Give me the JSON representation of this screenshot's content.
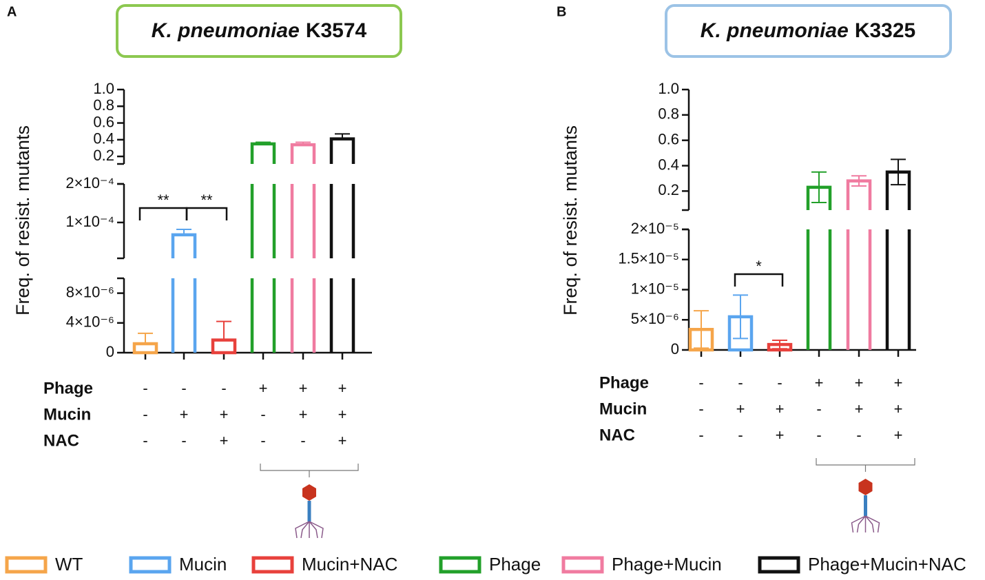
{
  "chart_data": [
    {
      "type": "bar",
      "panel": "A",
      "title": {
        "species": "K. pneumoniae",
        "strain": "K3574"
      },
      "y_label": "Freq. of resist. mutants",
      "categories": [
        null,
        null,
        null,
        null,
        null,
        null
      ],
      "values": [
        1.2e-06,
        6.8e-05,
        1.7e-06,
        0.35,
        0.34,
        0.41
      ],
      "errors": [
        1.4e-06,
        1.4e-05,
        2.5e-06,
        0.02,
        0.03,
        0.06
      ],
      "error_bars": "upper",
      "segments": [
        {
          "ylim": [
            0,
            1e-05
          ],
          "yticks": [
            0,
            {
              "value": 4e-06,
              "label": "4×10⁻⁶"
            },
            {
              "value": 8e-06,
              "label": "8×10⁻⁶"
            }
          ]
        },
        {
          "ylim": [
            7e-06,
            0.0002
          ],
          "yticks": [
            {
              "value": 0.0001,
              "label": "1×10⁻⁴"
            },
            {
              "value": 0.0002,
              "label": "2×10⁻⁴"
            }
          ]
        },
        {
          "ylim": [
            0.11,
            1.0
          ],
          "yticks": [
            0.2,
            0.4,
            0.6,
            0.8,
            {
              "value": 1.0,
              "label": "1.0"
            }
          ]
        }
      ],
      "conditions": [
        {
          "name": "Phage",
          "signs": [
            "-",
            "-",
            "-",
            "+",
            "+",
            "+"
          ]
        },
        {
          "name": "Mucin",
          "signs": [
            "-",
            "+",
            "+",
            "-",
            "+",
            "+"
          ]
        },
        {
          "name": "NAC",
          "signs": [
            "-",
            "-",
            "+",
            "-",
            "-",
            "+"
          ]
        }
      ],
      "significance": [
        {
          "from": 0,
          "to": 1,
          "label": "**"
        },
        {
          "from": 1,
          "to": 2,
          "label": "**"
        }
      ]
    },
    {
      "type": "bar",
      "panel": "B",
      "title": {
        "species": "K. pneumoniae",
        "strain": "K3325"
      },
      "y_label": "Freq. of resist. mutants",
      "categories": [
        null,
        null,
        null,
        null,
        null,
        null
      ],
      "values": [
        3.4e-06,
        5.5e-06,
        9e-07,
        0.23,
        0.28,
        0.35
      ],
      "errors": [
        3.1e-06,
        3.6e-06,
        7e-07,
        0.12,
        0.04,
        0.1
      ],
      "error_bars": "both",
      "segments": [
        {
          "ylim": [
            0,
            2e-05
          ],
          "yticks": [
            0,
            {
              "value": 5e-06,
              "label": "5×10⁻⁶"
            },
            {
              "value": 1e-05,
              "label": "1×10⁻⁵"
            },
            {
              "value": 1.5e-05,
              "label": "1.5×10⁻⁵"
            },
            {
              "value": 2e-05,
              "label": "2×10⁻⁵"
            }
          ]
        },
        {
          "ylim": [
            0.05,
            1.0
          ],
          "yticks": [
            0.2,
            0.4,
            0.6,
            0.8,
            {
              "value": 1.0,
              "label": "1.0"
            }
          ]
        }
      ],
      "conditions": [
        {
          "name": "Phage",
          "signs": [
            "-",
            "-",
            "-",
            "+",
            "+",
            "+"
          ]
        },
        {
          "name": "Mucin",
          "signs": [
            "-",
            "+",
            "+",
            "-",
            "+",
            "+"
          ]
        },
        {
          "name": "NAC",
          "signs": [
            "-",
            "-",
            "+",
            "-",
            "-",
            "+"
          ]
        }
      ],
      "significance": [
        {
          "from": 1,
          "to": 2,
          "label": "*"
        }
      ]
    }
  ],
  "legend": [
    {
      "name": "WT",
      "color": "#f5a54a"
    },
    {
      "name": "Mucin",
      "color": "#5aa5ef"
    },
    {
      "name": "Mucin+NAC",
      "color": "#e8413c"
    },
    {
      "name": "Phage",
      "color": "#22a02a"
    },
    {
      "name": "Phage+Mucin",
      "color": "#f07ba0"
    },
    {
      "name": "Phage+Mucin+NAC",
      "color": "#111111"
    }
  ]
}
